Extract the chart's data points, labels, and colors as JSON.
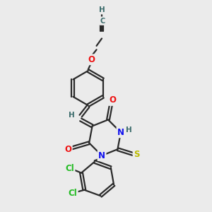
{
  "bg_color": "#ebebeb",
  "bond_color": "#2a2a2a",
  "bond_width": 1.6,
  "dbo": 0.055,
  "atom_colors": {
    "C": "#3a6b6b",
    "H": "#3a6b6b",
    "O": "#ee1111",
    "N": "#1111ee",
    "S": "#bbbb00",
    "Cl": "#22bb22"
  },
  "font_size": 8.5,
  "fig_size": [
    3.0,
    3.0
  ],
  "dpi": 100
}
